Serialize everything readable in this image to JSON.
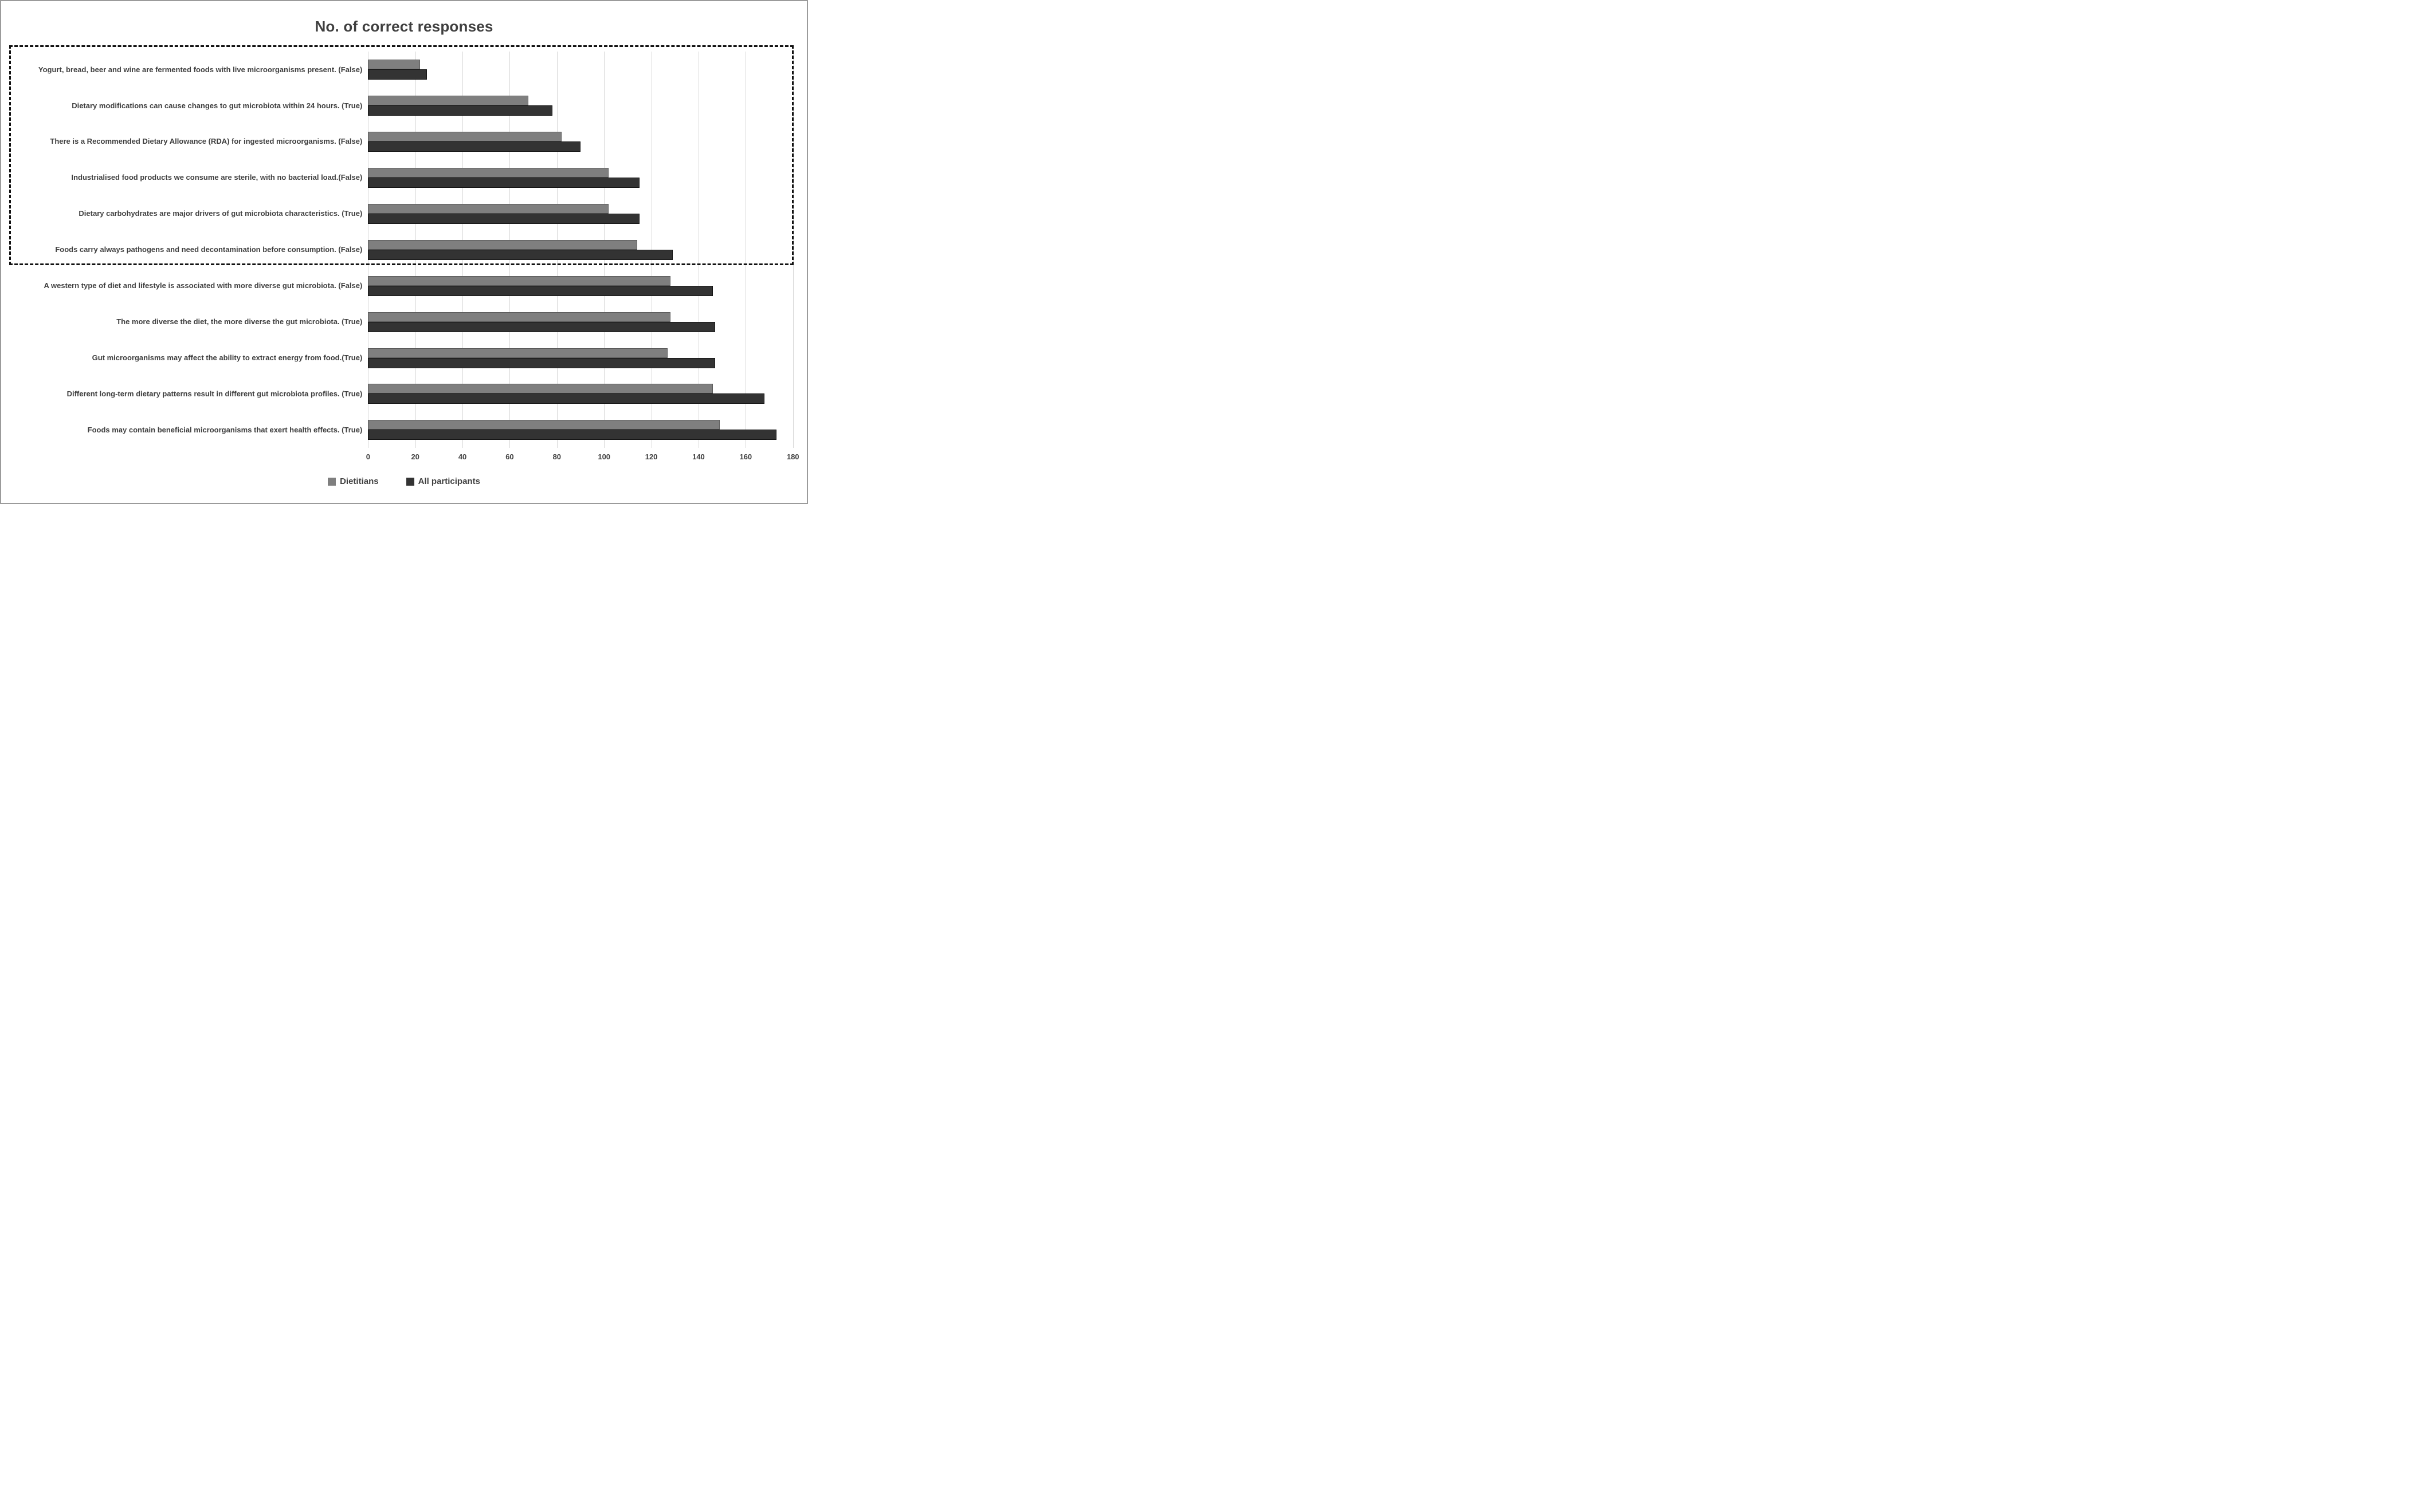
{
  "chart_data": {
    "type": "bar",
    "orientation": "horizontal",
    "title": "No. of correct responses",
    "categories": [
      "Yogurt, bread, beer and wine are fermented foods with live microorganisms present. (False)",
      "Dietary modifications can cause changes to gut microbiota within 24 hours. (True)",
      "There is a Recommended Dietary Allowance (RDA) for ingested microorganisms. (False)",
      "Industrialised food products we consume are sterile, with no bacterial load.(False)",
      "Dietary carbohydrates are major drivers of gut microbiota characteristics. (True)",
      "Foods carry always pathogens and need decontamination before consumption. (False)",
      "A western type of diet and lifestyle is associated with more diverse gut microbiota. (False)",
      "The more diverse the diet, the more diverse the gut microbiota. (True)",
      "Gut microorganisms may affect the ability to extract energy from food.(True)",
      "Different long-term dietary patterns result in different gut microbiota profiles. (True)",
      "Foods may contain beneficial microorganisms that exert health effects. (True)"
    ],
    "series": [
      {
        "name": "Dietitians",
        "color": "#7f7f7f",
        "values": [
          22,
          68,
          82,
          102,
          102,
          114,
          128,
          128,
          127,
          146,
          149
        ]
      },
      {
        "name": "All participants",
        "color": "#333333",
        "values": [
          25,
          78,
          90,
          115,
          115,
          129,
          146,
          147,
          147,
          168,
          173
        ]
      }
    ],
    "xlim": [
      0,
      180
    ],
    "xticks": [
      0,
      20,
      40,
      60,
      80,
      100,
      120,
      140,
      160,
      180
    ],
    "grid": true,
    "legend_position": "bottom",
    "highlight_box": {
      "style": "black-dashed-rectangle",
      "covers_category_indices": [
        0,
        1,
        2,
        3,
        4,
        5
      ]
    }
  }
}
